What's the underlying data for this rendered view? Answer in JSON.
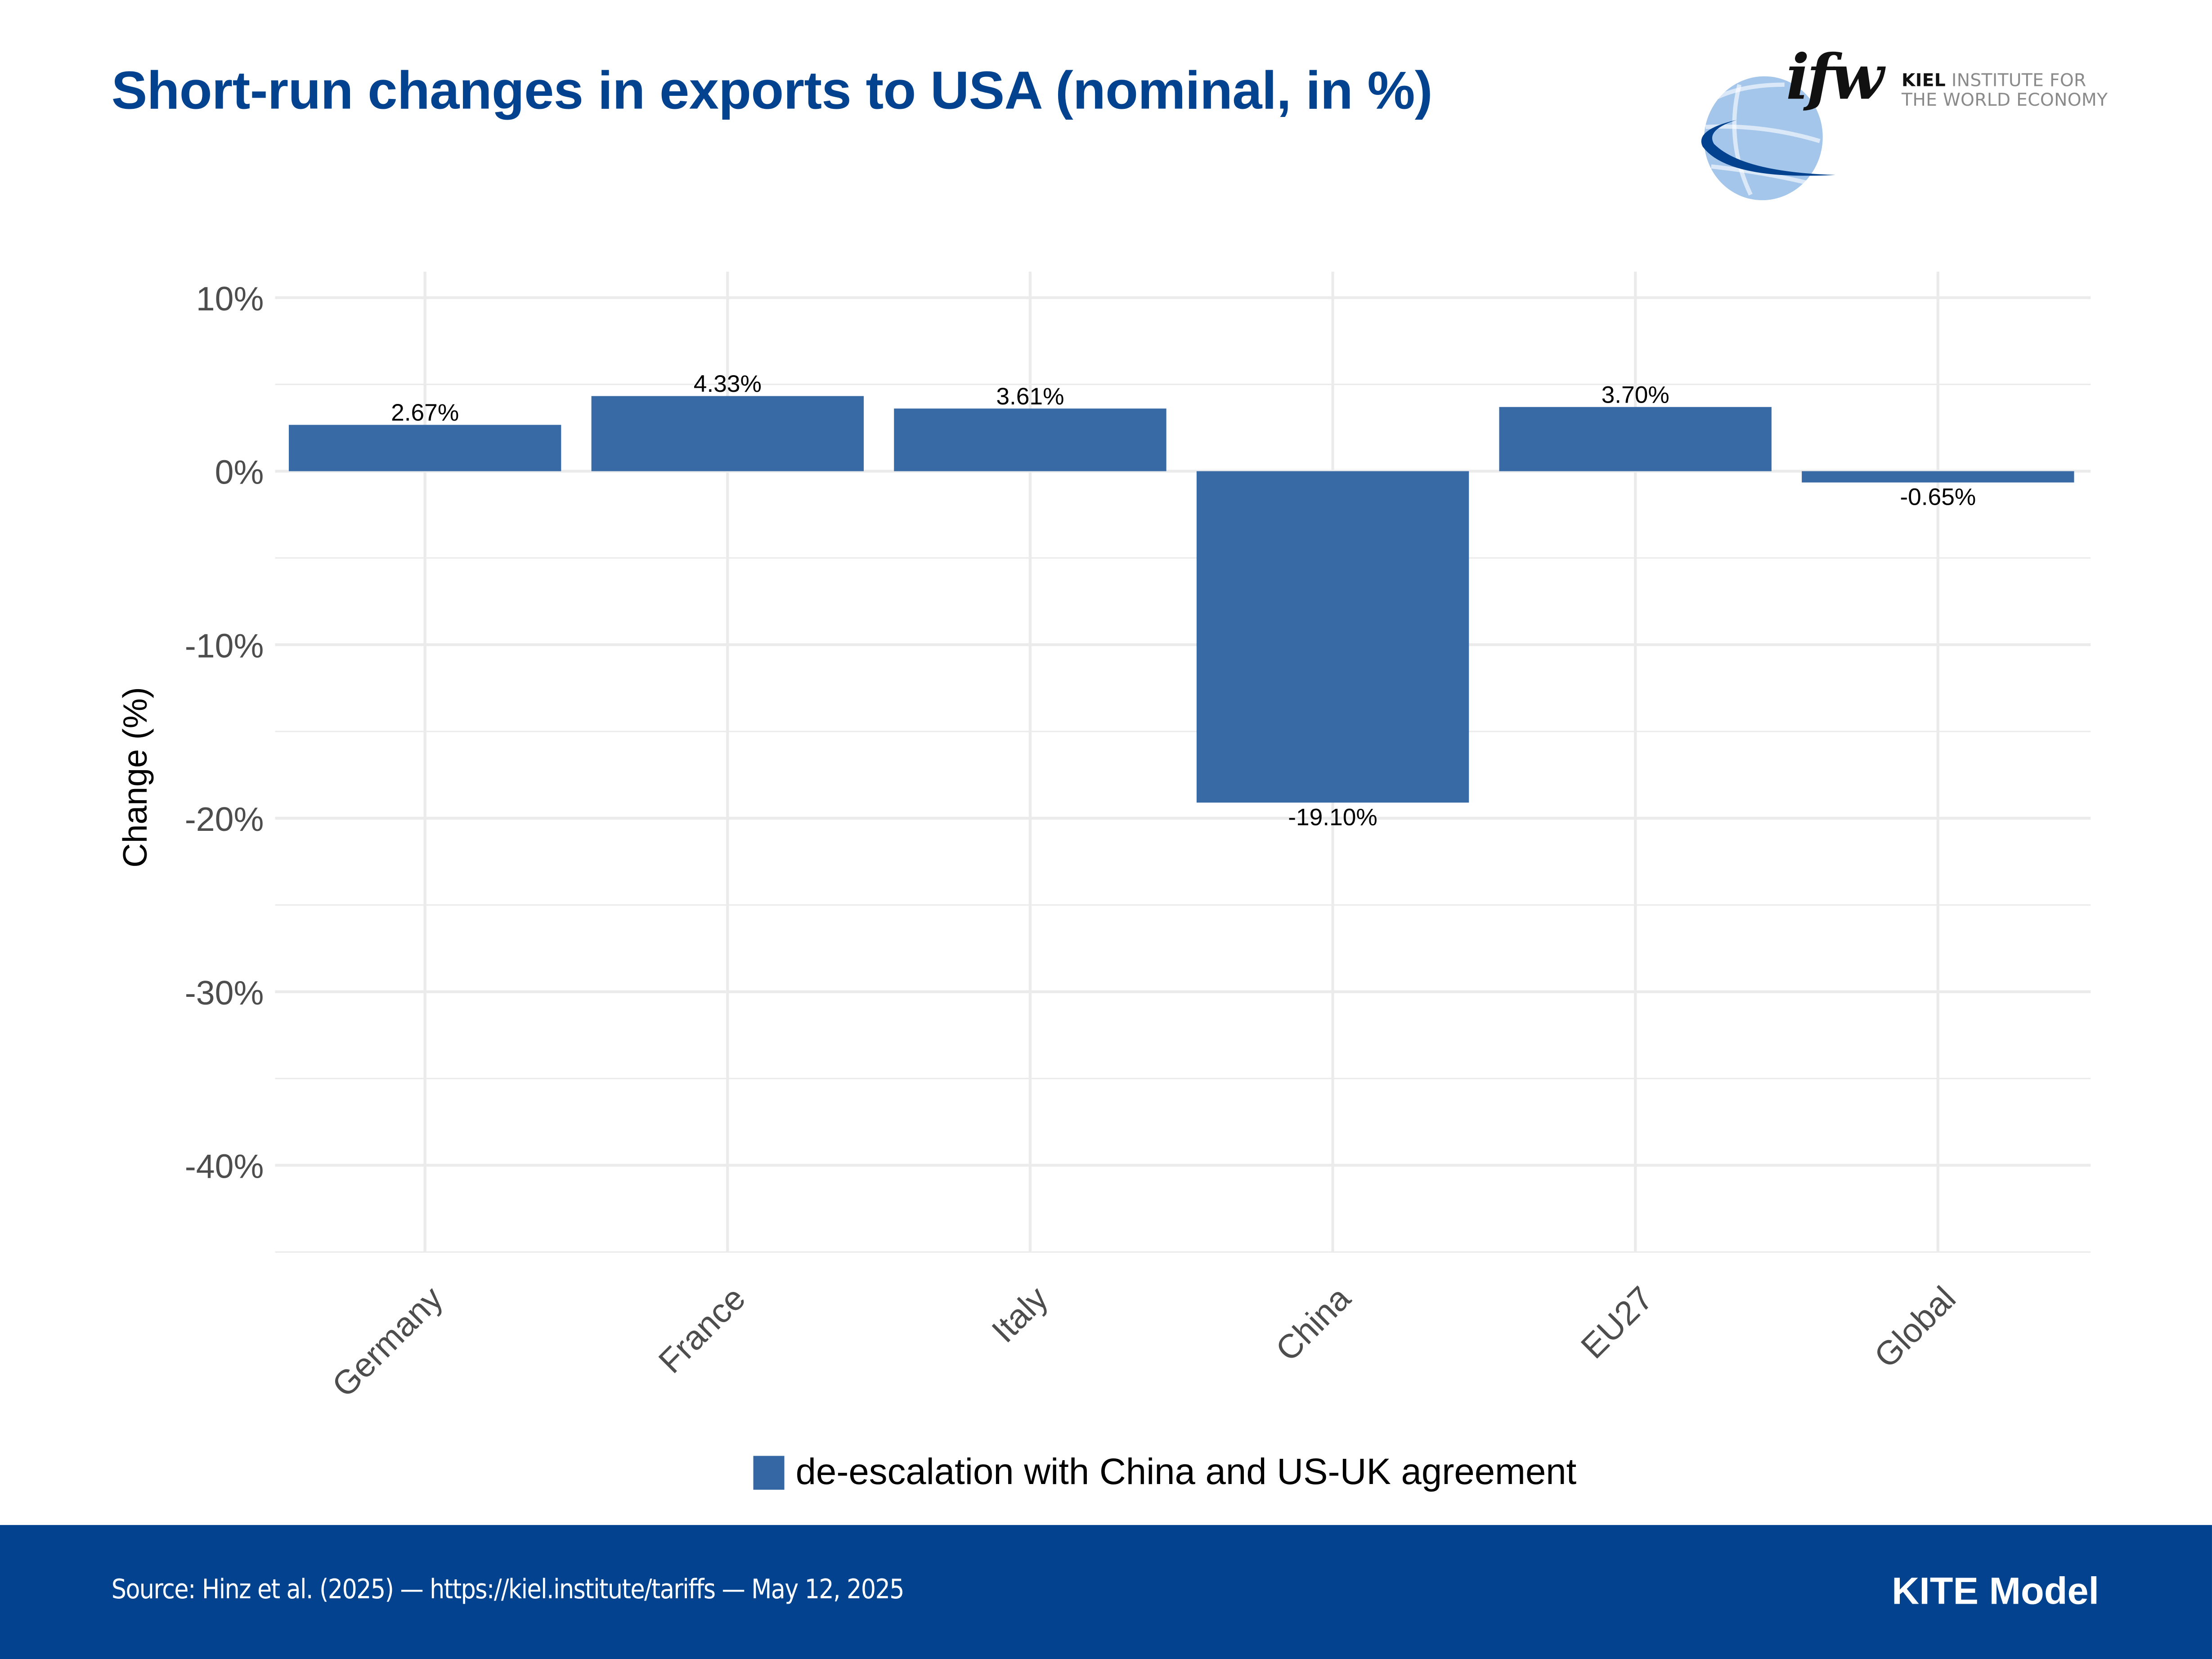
{
  "header": {
    "title": "Short-run changes in exports to USA (nominal, in %)",
    "logo": {
      "mark": "ifw",
      "line1_bold": "KIEL",
      "line1_rest": " INSTITUTE FOR",
      "line2": "THE WORLD ECONOMY",
      "icon": "globe-icon"
    }
  },
  "colors": {
    "title": "#02428f",
    "bar": "#3467a3",
    "footer_bg": "#02428f",
    "grid": "#ebebeb",
    "logo_globe_light": "#a4c6ea",
    "logo_swoosh": "#02428f"
  },
  "chart_data": {
    "type": "bar",
    "title": "Short-run changes in exports to USA (nominal, in %)",
    "xlabel": "",
    "ylabel": "Change (%)",
    "categories": [
      "Germany",
      "France",
      "Italy",
      "China",
      "EU27",
      "Global"
    ],
    "series": [
      {
        "name": "de-escalation with China and US-UK agreement",
        "values": [
          2.67,
          4.33,
          3.61,
          -19.1,
          3.7,
          -0.65
        ],
        "labels": [
          "2.67%",
          "4.33%",
          "3.61%",
          "-19.10%",
          "3.70%",
          "-0.65%"
        ]
      }
    ],
    "ylim": [
      -45,
      11.5
    ],
    "yticks": [
      10,
      0,
      -10,
      -20,
      -30,
      -40
    ],
    "ytick_labels": [
      "10%",
      "0%",
      "-10%",
      "-20%",
      "-30%",
      "-40%"
    ],
    "grid": true,
    "legend": "bottom",
    "xtick_rotation": 45
  },
  "legend": {
    "label": "de-escalation with China and US-UK agreement"
  },
  "footer": {
    "source": "Source: Hinz et al. (2025) — https://kiel.institute/tariffs — May 12, 2025",
    "model": "KITE Model"
  }
}
